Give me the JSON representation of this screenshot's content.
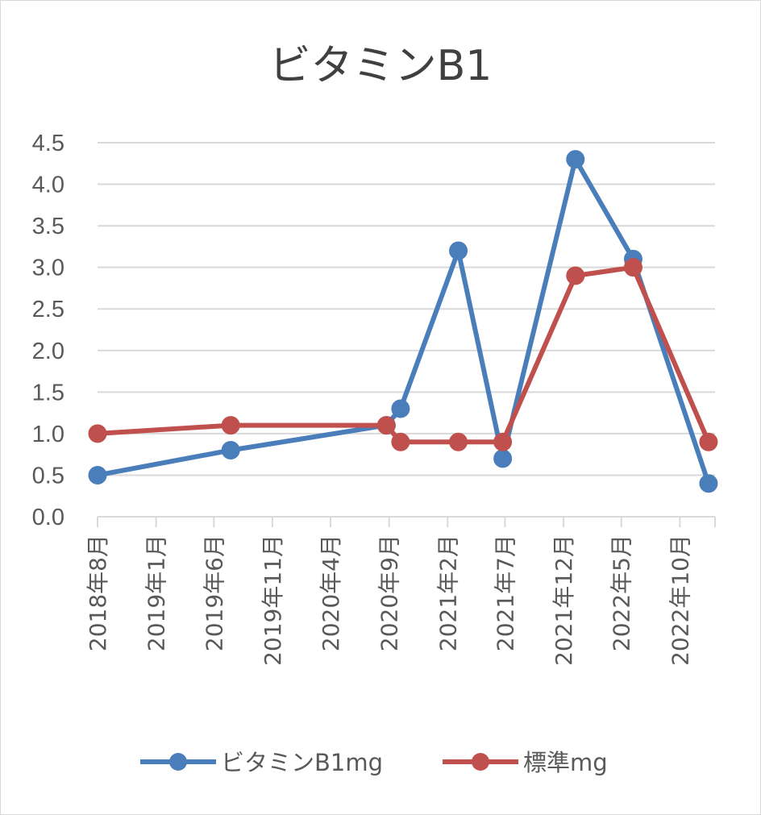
{
  "chart_data": {
    "type": "line",
    "title": "ビタミンB1",
    "xlabel": "",
    "ylabel": "",
    "ylim": [
      0,
      4.5
    ],
    "y_ticks": [
      "0.0",
      "0.5",
      "1.0",
      "1.5",
      "2.0",
      "2.5",
      "3.0",
      "3.5",
      "4.0",
      "4.5"
    ],
    "x_range": [
      "2018-08-01",
      "2023-01-01"
    ],
    "x_ticks": [
      {
        "date": "2018-08-01",
        "label": "2018年8月"
      },
      {
        "date": "2019-01-01",
        "label": "2019年1月"
      },
      {
        "date": "2019-06-01",
        "label": "2019年6月"
      },
      {
        "date": "2019-11-01",
        "label": "2019年11月"
      },
      {
        "date": "2020-04-01",
        "label": "2020年4月"
      },
      {
        "date": "2020-09-01",
        "label": "2020年9月"
      },
      {
        "date": "2021-02-01",
        "label": "2021年2月"
      },
      {
        "date": "2021-07-01",
        "label": "2021年7月"
      },
      {
        "date": "2021-12-01",
        "label": "2021年12月"
      },
      {
        "date": "2022-05-01",
        "label": "2022年5月"
      },
      {
        "date": "2022-10-01",
        "label": "2022年10月"
      }
    ],
    "grid": true,
    "legend_position": "bottom",
    "series": [
      {
        "name": "ビタミンB1mg",
        "color": "#4a7ebb",
        "points": [
          {
            "x": "2018-08-01",
            "y": 0.5
          },
          {
            "x": "2019-07-15",
            "y": 0.8
          },
          {
            "x": "2020-08-25",
            "y": 1.1
          },
          {
            "x": "2020-10-01",
            "y": 1.3
          },
          {
            "x": "2021-03-01",
            "y": 3.2
          },
          {
            "x": "2021-06-25",
            "y": 0.7
          },
          {
            "x": "2022-01-01",
            "y": 4.3
          },
          {
            "x": "2022-06-01",
            "y": 3.1
          },
          {
            "x": "2022-12-15",
            "y": 0.4
          }
        ]
      },
      {
        "name": "標準mg",
        "color": "#c0504d",
        "points": [
          {
            "x": "2018-08-01",
            "y": 1.0
          },
          {
            "x": "2019-07-15",
            "y": 1.1
          },
          {
            "x": "2020-08-25",
            "y": 1.1
          },
          {
            "x": "2020-10-01",
            "y": 0.9
          },
          {
            "x": "2021-03-01",
            "y": 0.9
          },
          {
            "x": "2021-06-25",
            "y": 0.9
          },
          {
            "x": "2022-01-01",
            "y": 2.9
          },
          {
            "x": "2022-06-01",
            "y": 3.0
          },
          {
            "x": "2022-12-15",
            "y": 0.9
          }
        ]
      }
    ]
  }
}
